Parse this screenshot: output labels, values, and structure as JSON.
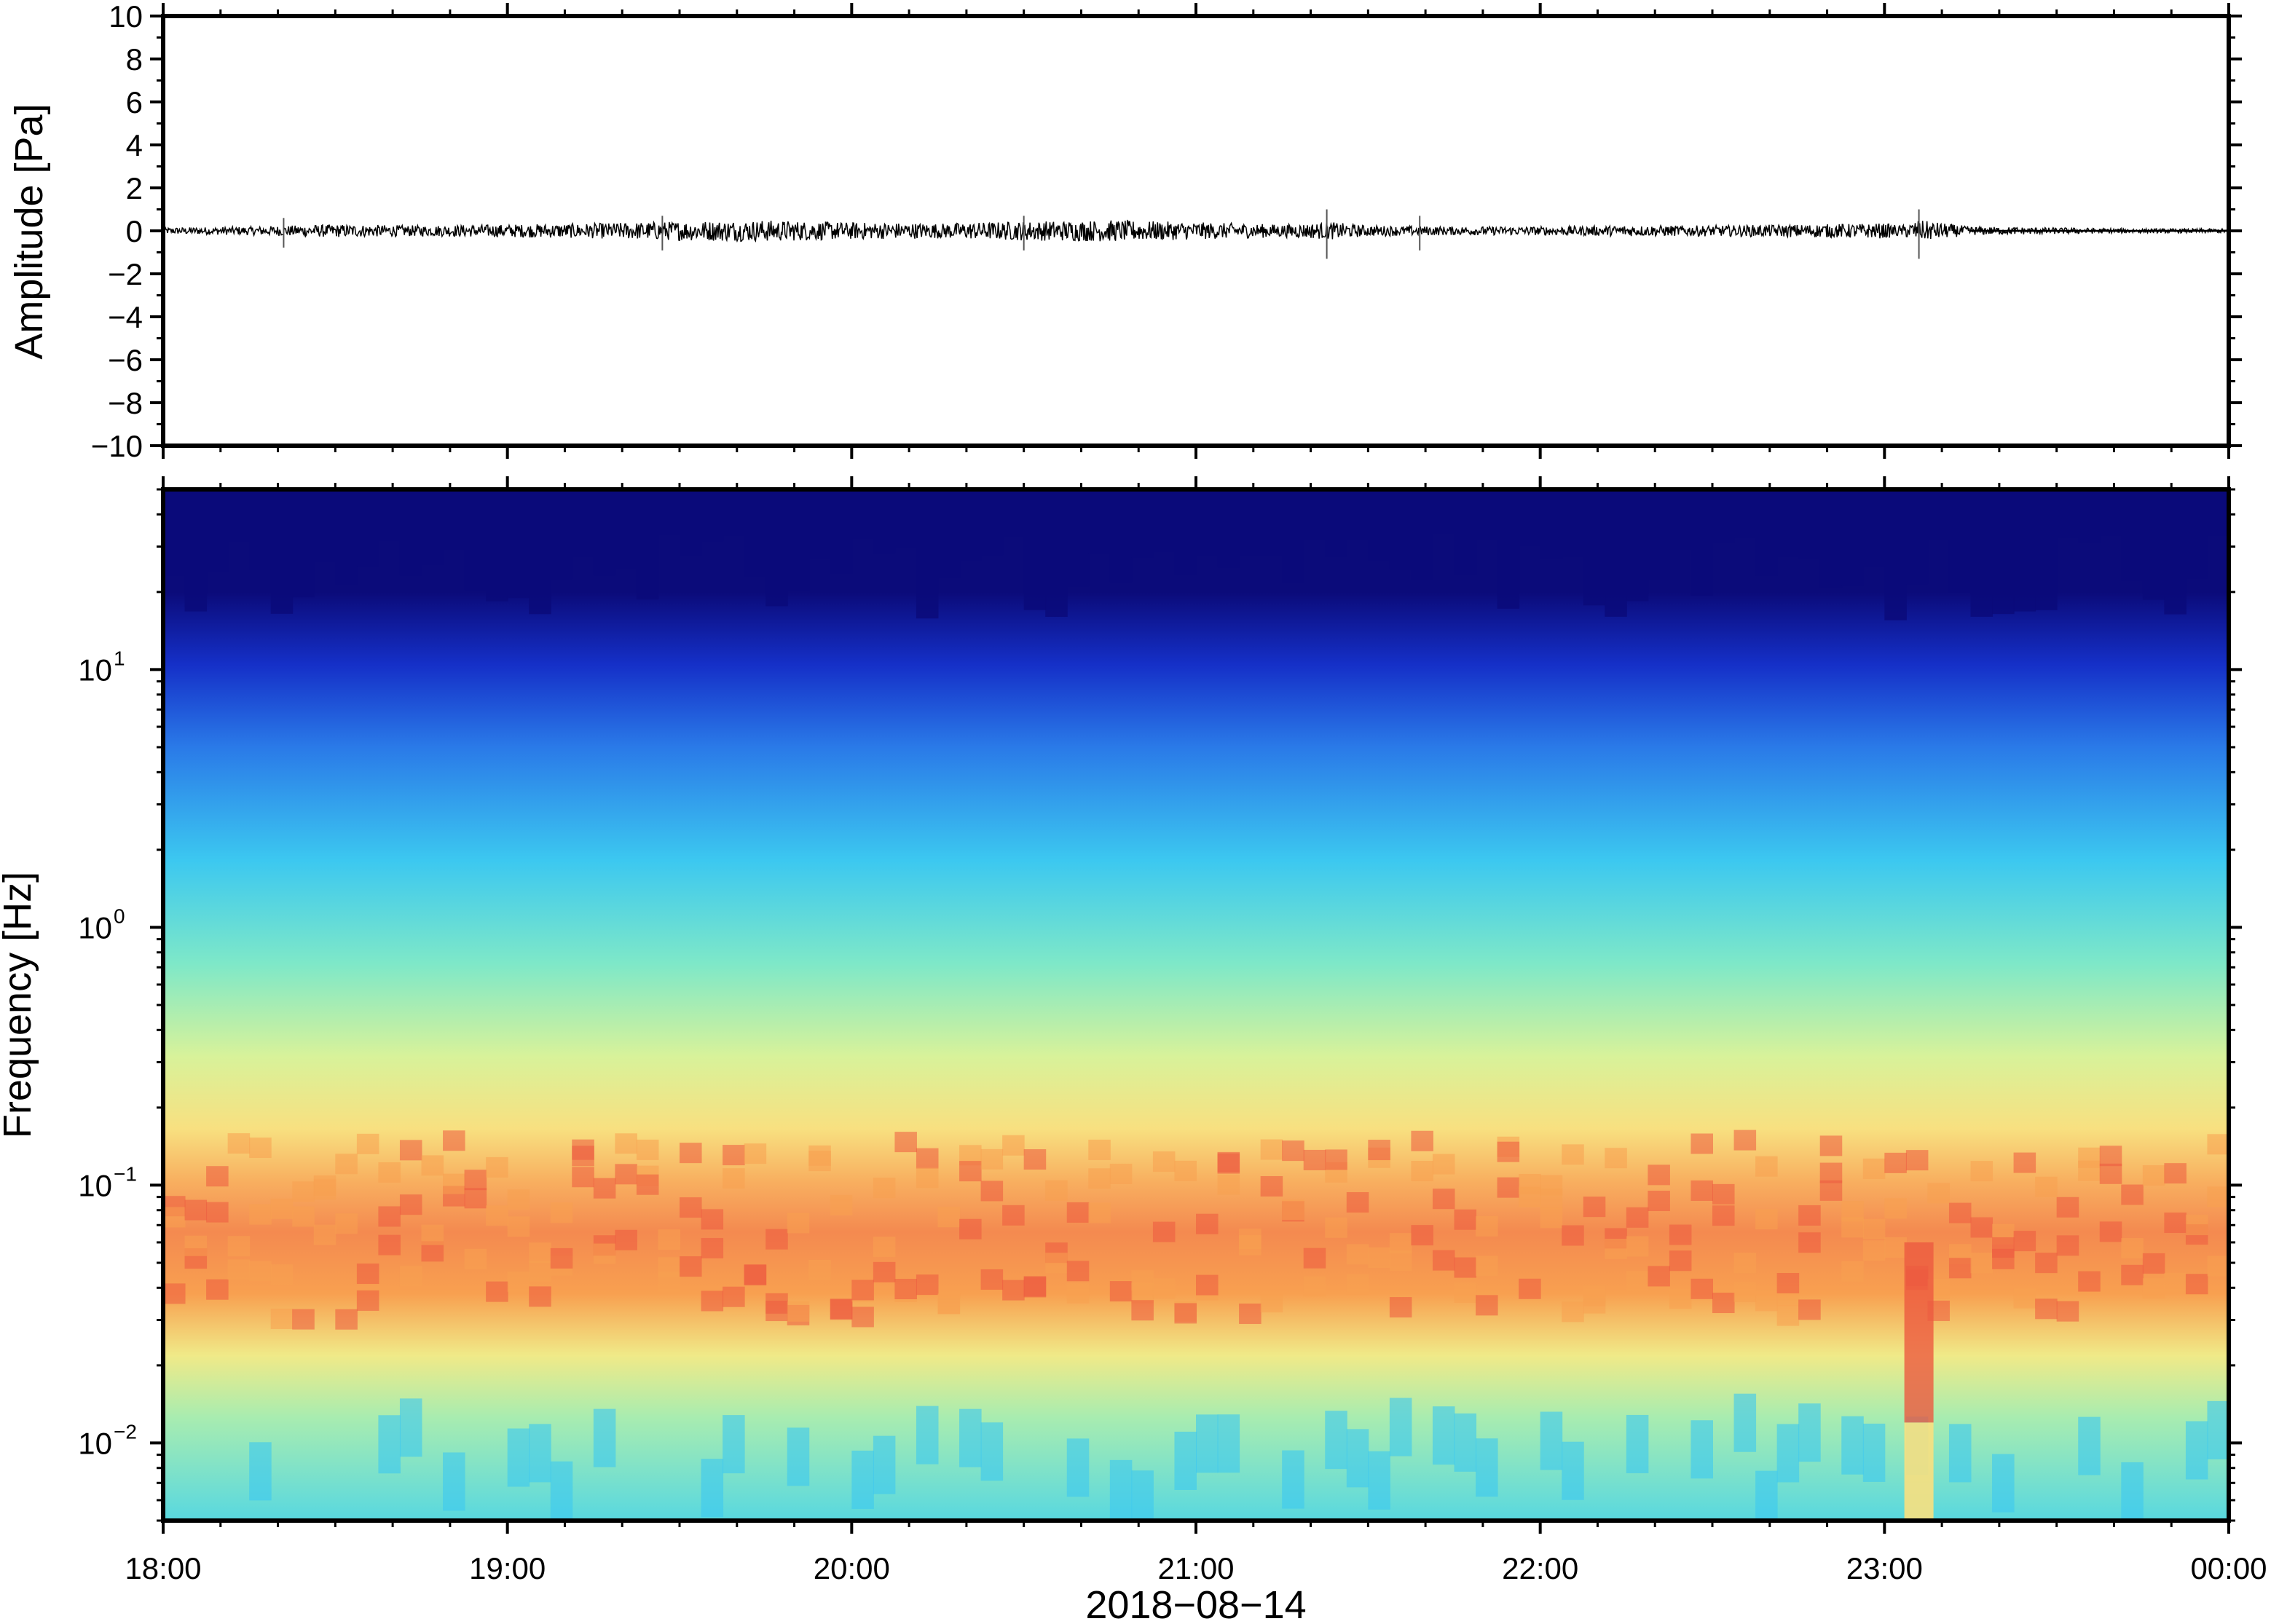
{
  "chart_data": [
    {
      "type": "line",
      "ylabel": "Amplitude [Pa]",
      "ylim": [
        -10,
        10
      ],
      "yticks": [
        "10",
        "8",
        "6",
        "4",
        "2",
        "0",
        "−2",
        "−4",
        "−6",
        "−8",
        "−10"
      ],
      "ytick_values": [
        10,
        8,
        6,
        4,
        2,
        0,
        -2,
        -4,
        -6,
        -8,
        -10
      ],
      "xlim": [
        "18:00",
        "00:00"
      ],
      "grid": false,
      "series": [
        {
          "values": [
            0.15,
            0.2,
            0.3,
            0.25,
            0.3,
            0.35,
            0.45,
            0.5,
            0.4,
            0.35,
            0.45,
            0.5,
            0.4,
            0.3,
            0.25,
            0.2,
            0.2,
            0.4,
            0.25,
            0.25,
            0.3,
            0.35,
            0.25,
            0.5,
            0.2,
            0.1
          ],
          "x_hours": [
            18.0,
            18.25,
            18.5,
            18.75,
            19.0,
            19.25,
            19.5,
            19.75,
            20.0,
            20.25,
            20.5,
            20.75,
            21.0,
            21.25,
            21.5,
            21.75,
            22.0,
            21.4,
            22.25,
            22.5,
            22.75,
            23.0,
            23.05,
            23.1,
            23.25,
            23.75
          ]
        }
      ],
      "envelope_note_values": {
        "spikes": [
          {
            "x_hours": 18.35,
            "amplitude": 0.6
          },
          {
            "x_hours": 19.45,
            "amplitude": 0.7
          },
          {
            "x_hours": 20.5,
            "amplitude": 0.7
          },
          {
            "x_hours": 21.38,
            "amplitude": 1.0
          },
          {
            "x_hours": 21.65,
            "amplitude": 0.7
          },
          {
            "x_hours": 23.1,
            "amplitude": 1.0
          }
        ]
      }
    },
    {
      "type": "heatmap",
      "ylabel": "Frequency [Hz]",
      "xlabel": "2018−08−14",
      "yscale": "log",
      "ylim": [
        0.005,
        50
      ],
      "yticks": [
        {
          "base": "10",
          "exp": "1",
          "value": 10
        },
        {
          "base": "10",
          "exp": "0",
          "value": 1
        },
        {
          "base": "10",
          "exp": "−1",
          "value": 0.1
        },
        {
          "base": "10",
          "exp": "−2",
          "value": 0.01
        }
      ],
      "xticks": [
        "18:00",
        "19:00",
        "20:00",
        "21:00",
        "22:00",
        "23:00",
        "00:00"
      ],
      "xtick_hours": [
        18,
        19,
        20,
        21,
        22,
        23,
        24
      ],
      "colormap": [
        "#0b0b7a",
        "#1530c8",
        "#2a7ae8",
        "#3cc8f0",
        "#7ee8c8",
        "#d8f29a",
        "#f8e080",
        "#f8a050",
        "#ec5a40"
      ],
      "peak_band_hz": [
        0.03,
        0.15
      ],
      "notable_features": [
        {
          "x_hours": 23.1,
          "description": "strong low-frequency energy"
        }
      ],
      "grid": false
    }
  ]
}
